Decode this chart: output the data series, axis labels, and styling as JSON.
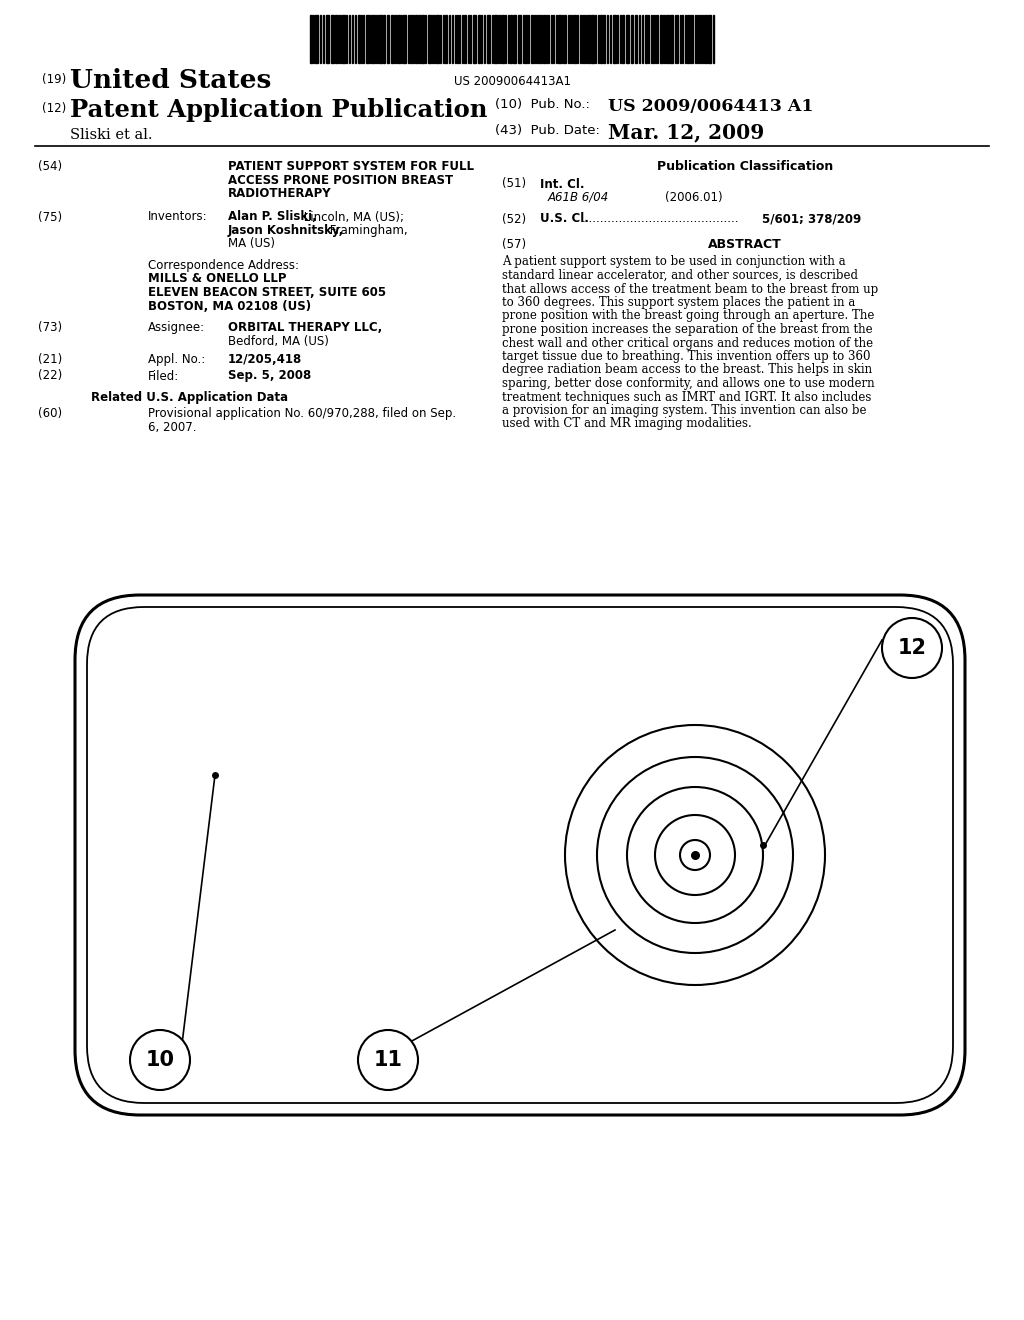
{
  "background_color": "#ffffff",
  "barcode_text": "US 20090064413A1",
  "title_19": "(19)",
  "title_us": "United States",
  "title_12": "(12)",
  "title_pub": "Patent Application Publication",
  "title_authors": "Sliski et al.",
  "pub_no_label": "(10)  Pub. No.:",
  "pub_no_val": "US 2009/0064413 A1",
  "pub_date_label": "(43)  Pub. Date:",
  "pub_date_val": "Mar. 12, 2009",
  "field54_label": "(54)",
  "field54_line1": "PATIENT SUPPORT SYSTEM FOR FULL",
  "field54_line2": "ACCESS PRONE POSITION BREAST",
  "field54_line3": "RADIOTHERAPY",
  "field75_label": "(75)",
  "field75_key": "Inventors:",
  "inv_bold1": "Alan P. Sliski,",
  "inv_reg1": " Lincoln, MA (US);",
  "inv_bold2": "Jason Koshnitsky,",
  "inv_reg2": " Framingham,",
  "inv_reg3": "MA (US)",
  "corr_label": "Correspondence Address:",
  "corr_name": "MILLS & ONELLO LLP",
  "corr_addr1": "ELEVEN BEACON STREET, SUITE 605",
  "corr_addr2": "BOSTON, MA 02108 (US)",
  "field73_label": "(73)",
  "field73_key": "Assignee:",
  "field73_val1": "ORBITAL THERAPY LLC,",
  "field73_val2": "Bedford, MA (US)",
  "field21_label": "(21)",
  "field21_key": "Appl. No.:",
  "field21_val": "12/205,418",
  "field22_label": "(22)",
  "field22_key": "Filed:",
  "field22_val": "Sep. 5, 2008",
  "related_header": "Related U.S. Application Data",
  "field60_label": "(60)",
  "field60_line1": "Provisional application No. 60/970,288, filed on Sep.",
  "field60_line2": "6, 2007.",
  "pub_class_header": "Publication Classification",
  "field51_label": "(51)",
  "field51_key": "Int. Cl.",
  "field51_class": "A61B 6/04",
  "field51_year": "(2006.01)",
  "field52_label": "(52)",
  "field52_key": "U.S. Cl.",
  "field52_dots": "..........................................",
  "field52_val": "5/601; 378/209",
  "field57_label": "(57)",
  "field57_header": "ABSTRACT",
  "abstract_lines": [
    "A patient support system to be used in conjunction with a",
    "standard linear accelerator, and other sources, is described",
    "that allows access of the treatment beam to the breast from up",
    "to 360 degrees. This support system places the patient in a",
    "prone position with the breast going through an aperture. The",
    "prone position increases the separation of the breast from the",
    "chest wall and other critical organs and reduces motion of the",
    "target tissue due to breathing. This invention offers up to 360",
    "degree radiation beam access to the breast. This helps in skin",
    "sparing, better dose conformity, and allows one to use modern",
    "treatment techniques such as IMRT and IGRT. It also includes",
    "a provision for an imaging system. This invention can also be",
    "used with CT and MR imaging modalities."
  ],
  "diagram_label_10": "10",
  "diagram_label_11": "11",
  "diagram_label_12": "12"
}
